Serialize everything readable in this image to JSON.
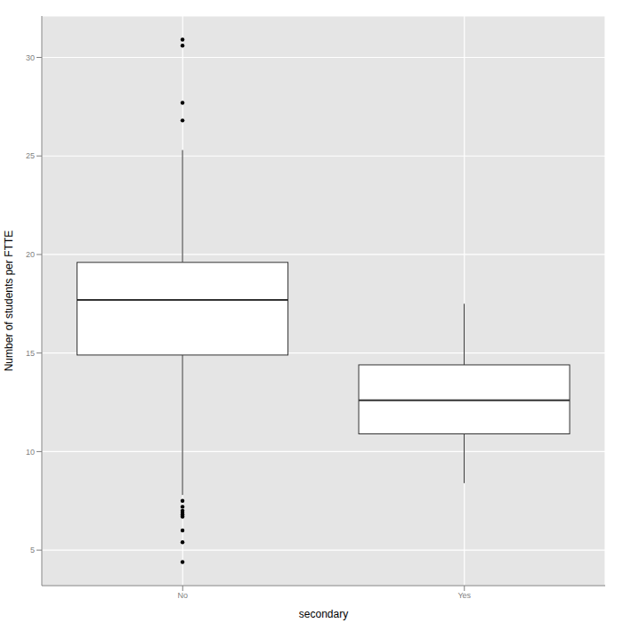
{
  "chart_data": {
    "type": "box",
    "x_label": "secondary",
    "y_label": "Number of students per FTTE",
    "categories": [
      "No",
      "Yes"
    ],
    "boxes": [
      {
        "whisker_low": 7.8,
        "q1": 14.9,
        "median": 17.7,
        "q3": 19.6,
        "whisker_high": 25.3,
        "outliers": [
          30.9,
          30.6,
          27.7,
          26.8,
          7.5,
          7.2,
          7.0,
          6.9,
          6.8,
          6.7,
          6.0,
          5.4,
          4.4
        ]
      },
      {
        "whisker_low": 8.4,
        "q1": 10.9,
        "median": 12.6,
        "q3": 14.4,
        "whisker_high": 17.5,
        "outliers": []
      }
    ],
    "ylim": [
      3.2,
      32.1
    ],
    "yticks": [
      5,
      10,
      15,
      20,
      25,
      30
    ],
    "grid": true,
    "color": "#ffffff"
  }
}
